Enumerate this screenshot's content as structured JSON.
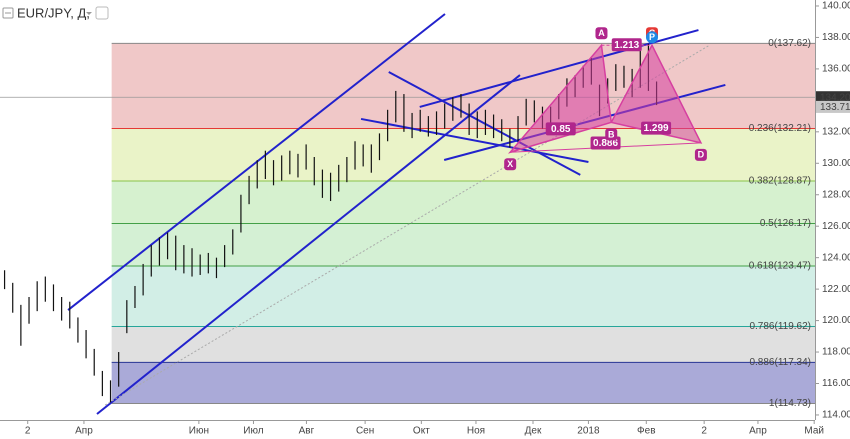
{
  "chart_data": {
    "type": "ohlc",
    "title": "EUR/JPY, Д,",
    "xlim": [
      -0.5,
      99.5
    ],
    "ylim": [
      113.68,
      140.38
    ],
    "xticks": [
      {
        "value": 2.9,
        "label": "2"
      },
      {
        "value": 9.8,
        "label": "Апр"
      },
      {
        "value": 23.9,
        "label": "Июн"
      },
      {
        "value": 30.6,
        "label": "Июл"
      },
      {
        "value": 37.1,
        "label": "Авг"
      },
      {
        "value": 44.3,
        "label": "Сен"
      },
      {
        "value": 51.2,
        "label": "Окт"
      },
      {
        "value": 57.9,
        "label": "Ноя"
      },
      {
        "value": 64.9,
        "label": "Дек"
      },
      {
        "value": 71.7,
        "label": "2018"
      },
      {
        "value": 78.8,
        "label": "Фев"
      },
      {
        "value": 85.9,
        "label": "2"
      },
      {
        "value": 92.5,
        "label": "Апр"
      },
      {
        "value": 99.4,
        "label": "Май"
      }
    ],
    "yticks": [
      {
        "value": 114,
        "label": "114.00"
      },
      {
        "value": 116,
        "label": "116.00"
      },
      {
        "value": 118,
        "label": "118.00"
      },
      {
        "value": 120,
        "label": "120.00"
      },
      {
        "value": 122,
        "label": "122.00"
      },
      {
        "value": 124,
        "label": "124.00"
      },
      {
        "value": 126,
        "label": "126.00"
      },
      {
        "value": 128,
        "label": "128.00"
      },
      {
        "value": 130,
        "label": "130.00"
      },
      {
        "value": 132,
        "label": "132.00"
      },
      {
        "value": 134,
        "label": "134.00"
      },
      {
        "value": 136,
        "label": "136.00"
      },
      {
        "value": 138,
        "label": "138.00"
      },
      {
        "value": 140,
        "label": "140.00"
      }
    ],
    "color": "#111",
    "high": [
      123.2,
      122.4,
      121.0,
      121.5,
      122.5,
      122.8,
      122.3,
      121.5,
      121.2,
      120.2,
      119.4,
      118.2,
      116.8,
      116.2,
      118.0,
      121.3,
      122.2,
      123.6,
      124.8,
      125.3,
      125.6,
      125.4,
      124.8,
      124.6,
      124.2,
      124.3,
      124.0,
      124.8,
      125.8,
      128.0,
      129.2,
      130.2,
      130.8,
      130.2,
      130.5,
      130.8,
      130.6,
      131.2,
      130.4,
      129.6,
      129.4,
      129.9,
      130.4,
      131.4,
      131.2,
      131.2,
      131.9,
      133.4,
      134.6,
      134.4,
      133.2,
      133.4,
      133.0,
      133.3,
      133.8,
      134.2,
      134.4,
      133.8,
      133.3,
      133.4,
      133.1,
      132.8,
      132.2,
      133.0,
      134.1,
      134.0,
      133.6,
      133.6,
      134.4,
      135.4,
      135.6,
      136.2,
      136.7,
      135.0,
      135.4,
      136.3,
      136.2,
      136.0,
      137.2,
      137.6,
      135.2
    ],
    "low": [
      122.0,
      120.5,
      118.4,
      119.8,
      120.6,
      121.2,
      120.6,
      120.0,
      119.5,
      118.6,
      117.6,
      116.5,
      115.2,
      114.8,
      115.8,
      119.2,
      120.8,
      121.6,
      122.8,
      123.5,
      123.9,
      123.2,
      123.0,
      122.8,
      122.9,
      123.0,
      122.7,
      123.4,
      124.2,
      125.6,
      127.4,
      128.4,
      129.0,
      128.6,
      128.9,
      129.3,
      129.1,
      129.6,
      128.6,
      127.8,
      127.6,
      128.2,
      128.8,
      129.6,
      129.8,
      129.4,
      130.2,
      131.4,
      132.6,
      132.0,
      131.6,
      132.0,
      131.7,
      131.8,
      132.2,
      132.7,
      132.9,
      131.8,
      131.6,
      131.8,
      131.6,
      131.4,
      131.0,
      131.4,
      132.4,
      132.6,
      132.2,
      131.8,
      132.8,
      133.6,
      134.2,
      134.8,
      135.0,
      133.0,
      133.8,
      134.6,
      134.8,
      134.2,
      134.8,
      134.6,
      133.7
    ],
    "fib": {
      "x_start": 13.2,
      "levels": [
        {
          "value": 137.62,
          "label": "0(137.62)",
          "color": "#888888",
          "band_color": "#f0c8c8"
        },
        {
          "value": 132.21,
          "label": "0.236(132.21)",
          "color": "#e53935",
          "band_color": "#eaf3c8"
        },
        {
          "value": 128.87,
          "label": "0.382(128.87)",
          "color": "#8bc34a",
          "band_color": "#d6f1cf"
        },
        {
          "value": 126.17,
          "label": "0.5(126.17)",
          "color": "#43a047",
          "band_color": "#d4f0d4"
        },
        {
          "value": 123.47,
          "label": "0.618(123.47)",
          "color": "#43a047",
          "band_color": "#d2eee6"
        },
        {
          "value": 119.62,
          "label": "0.786(119.62)",
          "color": "#26a69a",
          "band_color": "#e0e0e0"
        },
        {
          "value": 117.34,
          "label": "0.886(117.34)",
          "color": "#283593",
          "band_color": "#aaaad8"
        },
        {
          "value": 114.73,
          "label": "1(114.73)",
          "color": "#888888"
        }
      ]
    },
    "lines": [
      {
        "color": "#2222cc",
        "x": [
          7.85,
          54.1
        ],
        "y": [
          120.67,
          139.49
        ]
      },
      {
        "color": "#2222cc",
        "x": [
          11.4,
          63.3
        ],
        "y": [
          114.06,
          135.61
        ]
      },
      {
        "color": "#2222cc",
        "x": [
          47.2,
          70.7
        ],
        "y": [
          135.8,
          129.26
        ]
      },
      {
        "color": "#2222cc",
        "x": [
          43.8,
          71.7
        ],
        "y": [
          132.82,
          130.08
        ]
      },
      {
        "color": "#2222cc",
        "x": [
          54.0,
          88.5
        ],
        "y": [
          130.21,
          134.98
        ]
      },
      {
        "color": "#2222cc",
        "x": [
          51.0,
          85.2
        ],
        "y": [
          133.58,
          138.47
        ]
      },
      {
        "color": "#aaaaaa",
        "dashed": true,
        "x": [
          12.4,
          86.6
        ],
        "y": [
          114.63,
          137.52
        ]
      }
    ],
    "pattern": {
      "color": "#d63fa0",
      "points": [
        {
          "label": "X",
          "x": 62.1,
          "y": 130.7
        },
        {
          "label": "A",
          "x": 73.3,
          "y": 137.5
        },
        {
          "label": "B",
          "x": 74.5,
          "y": 132.6
        },
        {
          "label": "C",
          "x": 79.5,
          "y": 137.5
        },
        {
          "label": "D",
          "x": 85.5,
          "y": 131.3
        }
      ],
      "ratios": [
        "1.213",
        "0.85",
        "0.886",
        "1.299"
      ],
      "marker": {
        "label": "P",
        "color": "#1e88e5"
      }
    },
    "last_prices": [
      {
        "value": 134.2,
        "label": "134.20",
        "color": "#333333"
      },
      {
        "value": 133.71,
        "label": "133.71",
        "color": "#c8c8c8"
      }
    ]
  }
}
